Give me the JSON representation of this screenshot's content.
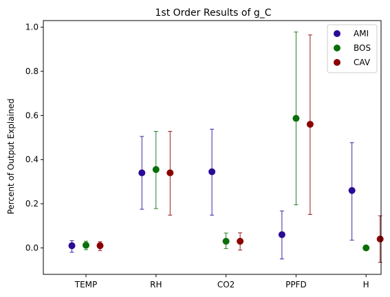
{
  "chart_data": {
    "type": "scatter",
    "title": "1st Order Results of g_C",
    "xlabel": "",
    "ylabel": "Percent of Output Explained",
    "categories": [
      "TEMP",
      "RH",
      "CO2",
      "PPFD",
      "H"
    ],
    "ylim": [
      -0.12,
      1.03
    ],
    "yticks": [
      "0.0",
      "0.2",
      "0.4",
      "0.6",
      "0.8",
      "1.0"
    ],
    "legend_position": "top-right",
    "grid": false,
    "series": [
      {
        "name": "AMI",
        "color": "#2a0a96",
        "values": [
          0.01,
          0.34,
          0.345,
          0.06,
          0.26
        ],
        "err_low": [
          -0.02,
          0.175,
          0.148,
          -0.05,
          0.035
        ],
        "err_high": [
          0.033,
          0.505,
          0.538,
          0.167,
          0.477
        ]
      },
      {
        "name": "BOS",
        "color": "#0a6f0a",
        "values": [
          0.012,
          0.355,
          0.03,
          0.587,
          0.0
        ],
        "err_low": [
          -0.008,
          0.178,
          -0.003,
          0.195,
          0.0
        ],
        "err_high": [
          0.03,
          0.528,
          0.067,
          0.978,
          0.0
        ]
      },
      {
        "name": "CAV",
        "color": "#8b0000",
        "values": [
          0.01,
          0.34,
          0.03,
          0.56,
          0.04
        ],
        "err_low": [
          -0.012,
          0.148,
          -0.01,
          0.152,
          -0.065
        ],
        "err_high": [
          0.028,
          0.528,
          0.068,
          0.965,
          0.145
        ]
      }
    ]
  }
}
